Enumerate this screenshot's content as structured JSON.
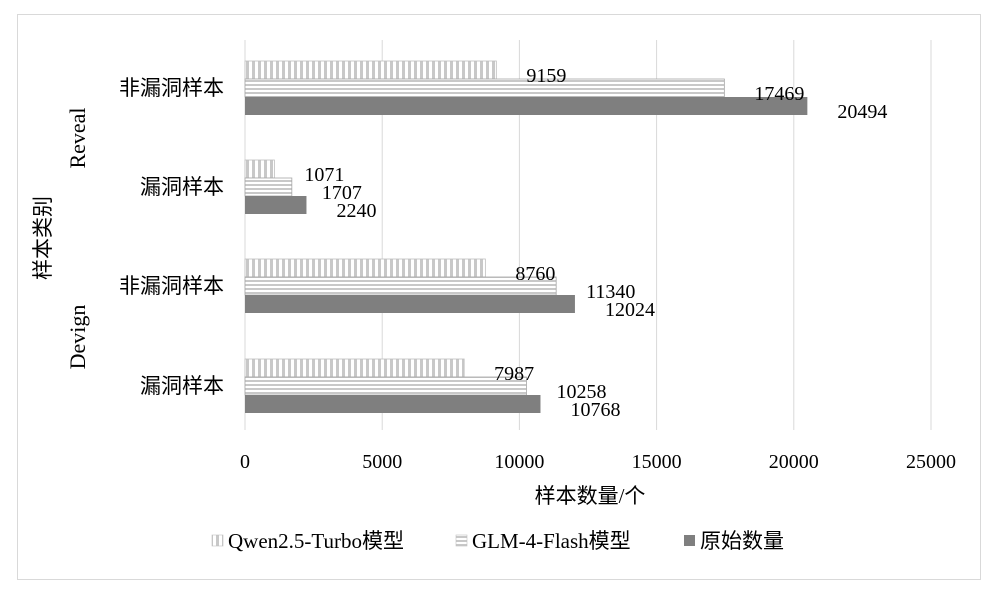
{
  "chart_data": {
    "type": "bar",
    "orientation": "horizontal",
    "title": "",
    "xlabel": "样本数量/个",
    "ylabel": "样本类别",
    "xlim": [
      0,
      25000
    ],
    "xticks": [
      "0",
      "5000",
      "10000",
      "15000",
      "20000",
      "25000"
    ],
    "grid": "vertical",
    "legend_position": "bottom",
    "groups": [
      {
        "name": "Reveal",
        "categories": [
          "非漏洞样本",
          "漏洞样本"
        ]
      },
      {
        "name": "Devign",
        "categories": [
          "非漏洞样本",
          "漏洞样本"
        ]
      }
    ],
    "categories": [
      "Reveal 非漏洞样本",
      "Reveal 漏洞样本",
      "Devign 非漏洞样本",
      "Devign 漏洞样本"
    ],
    "series": [
      {
        "name": "Qwen2.5-Turbo模型",
        "values": [
          9159,
          1071,
          8760,
          7987
        ],
        "labels": [
          "9159",
          "1071",
          "8760",
          "7987"
        ],
        "color": "#d9d9d9",
        "pattern": "vertical-stripes"
      },
      {
        "name": "GLM-4-Flash模型",
        "values": [
          17469,
          1707,
          11340,
          10258
        ],
        "labels": [
          "17469",
          "1707",
          "11340",
          "10258"
        ],
        "color": "#d9d9d9",
        "pattern": "horizontal-stripes"
      },
      {
        "name": "原始数量",
        "values": [
          20494,
          2240,
          12024,
          10768
        ],
        "labels": [
          "20494",
          "2240",
          "12024",
          "10768"
        ],
        "color": "#7f7f7f",
        "pattern": "solid"
      }
    ]
  }
}
